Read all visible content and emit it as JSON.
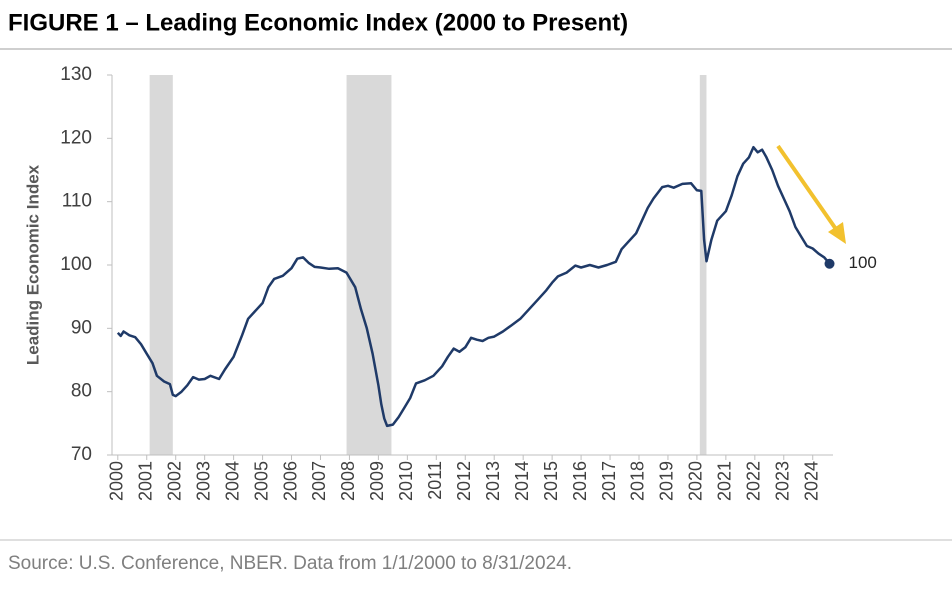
{
  "chart_data": {
    "type": "line",
    "title": "FIGURE 1 – Leading Economic Index (2000 to Present)",
    "y_label": "Leading Economic Index",
    "source": "Source: U.S. Conference, NBER. Data from 1/1/2000 to 8/31/2024.",
    "end_label": "100",
    "color": "#1f3a68",
    "recession_color": "#d9d9d9",
    "arrow_color": "#f2c12e",
    "recessions": [
      {
        "start": 2001.1,
        "end": 2001.9
      },
      {
        "start": 2007.9,
        "end": 2009.45
      },
      {
        "start": 2020.1,
        "end": 2020.33
      }
    ],
    "x": [
      2000.0,
      2000.1,
      2000.2,
      2000.4,
      2000.6,
      2000.8,
      2001.0,
      2001.2,
      2001.35,
      2001.6,
      2001.8,
      2001.9,
      2002.0,
      2002.2,
      2002.4,
      2002.6,
      2002.8,
      2003.0,
      2003.2,
      2003.5,
      2003.7,
      2004.0,
      2004.3,
      2004.5,
      2004.8,
      2005.0,
      2005.2,
      2005.4,
      2005.7,
      2006.0,
      2006.2,
      2006.4,
      2006.6,
      2006.8,
      2007.0,
      2007.3,
      2007.6,
      2007.9,
      2008.2,
      2008.4,
      2008.6,
      2008.8,
      2009.0,
      2009.1,
      2009.2,
      2009.3,
      2009.5,
      2009.7,
      2009.9,
      2010.1,
      2010.3,
      2010.6,
      2010.9,
      2011.2,
      2011.4,
      2011.6,
      2011.8,
      2012.0,
      2012.2,
      2012.4,
      2012.6,
      2012.8,
      2013.0,
      2013.3,
      2013.6,
      2013.9,
      2014.2,
      2014.5,
      2014.8,
      2015.0,
      2015.2,
      2015.5,
      2015.8,
      2016.0,
      2016.3,
      2016.6,
      2016.9,
      2017.2,
      2017.4,
      2017.6,
      2017.9,
      2018.1,
      2018.3,
      2018.5,
      2018.8,
      2019.0,
      2019.2,
      2019.5,
      2019.8,
      2020.0,
      2020.15,
      2020.25,
      2020.33,
      2020.5,
      2020.7,
      2021.0,
      2021.2,
      2021.4,
      2021.6,
      2021.8,
      2021.95,
      2022.1,
      2022.25,
      2022.4,
      2022.6,
      2022.8,
      2023.0,
      2023.2,
      2023.4,
      2023.6,
      2023.8,
      2024.0,
      2024.2,
      2024.4,
      2024.58
    ],
    "values": [
      89.3,
      88.8,
      89.5,
      88.9,
      88.6,
      87.5,
      86,
      84.5,
      82.5,
      81.6,
      81.2,
      79.5,
      79.3,
      80.0,
      81,
      82.3,
      81.9,
      82.0,
      82.5,
      82.0,
      83.5,
      85.5,
      89,
      91.5,
      93,
      94,
      96.5,
      97.8,
      98.3,
      99.5,
      101,
      101.2,
      100.3,
      99.7,
      99.6,
      99.4,
      99.5,
      98.8,
      96.5,
      93,
      90,
      86,
      81,
      78,
      75.8,
      74.6,
      74.8,
      76,
      77.5,
      79,
      81.3,
      81.8,
      82.5,
      84,
      85.5,
      86.8,
      86.3,
      87,
      88.5,
      88.2,
      88,
      88.5,
      88.7,
      89.5,
      90.5,
      91.5,
      93,
      94.5,
      96,
      97.2,
      98.2,
      98.8,
      99.9,
      99.6,
      100,
      99.6,
      100,
      100.5,
      102.5,
      103.5,
      105,
      107,
      109,
      110.5,
      112.3,
      112.5,
      112.2,
      112.8,
      112.9,
      111.8,
      111.7,
      104,
      100.6,
      104,
      107,
      108.5,
      111,
      114,
      116,
      117,
      118.6,
      117.8,
      118.2,
      117,
      115,
      112.5,
      110.5,
      108.5,
      106,
      104.5,
      103,
      102.6,
      101.8,
      101.2,
      100.2
    ],
    "xlim": [
      1999.8,
      2024.7
    ],
    "xticks": [
      2000,
      2001,
      2002,
      2003,
      2004,
      2005,
      2006,
      2007,
      2008,
      2009,
      2010,
      2011,
      2012,
      2013,
      2014,
      2015,
      2016,
      2017,
      2018,
      2019,
      2020,
      2021,
      2022,
      2023,
      2024
    ],
    "ylim": [
      70,
      130
    ],
    "yticks": [
      70,
      80,
      90,
      100,
      110,
      120,
      130
    ]
  }
}
